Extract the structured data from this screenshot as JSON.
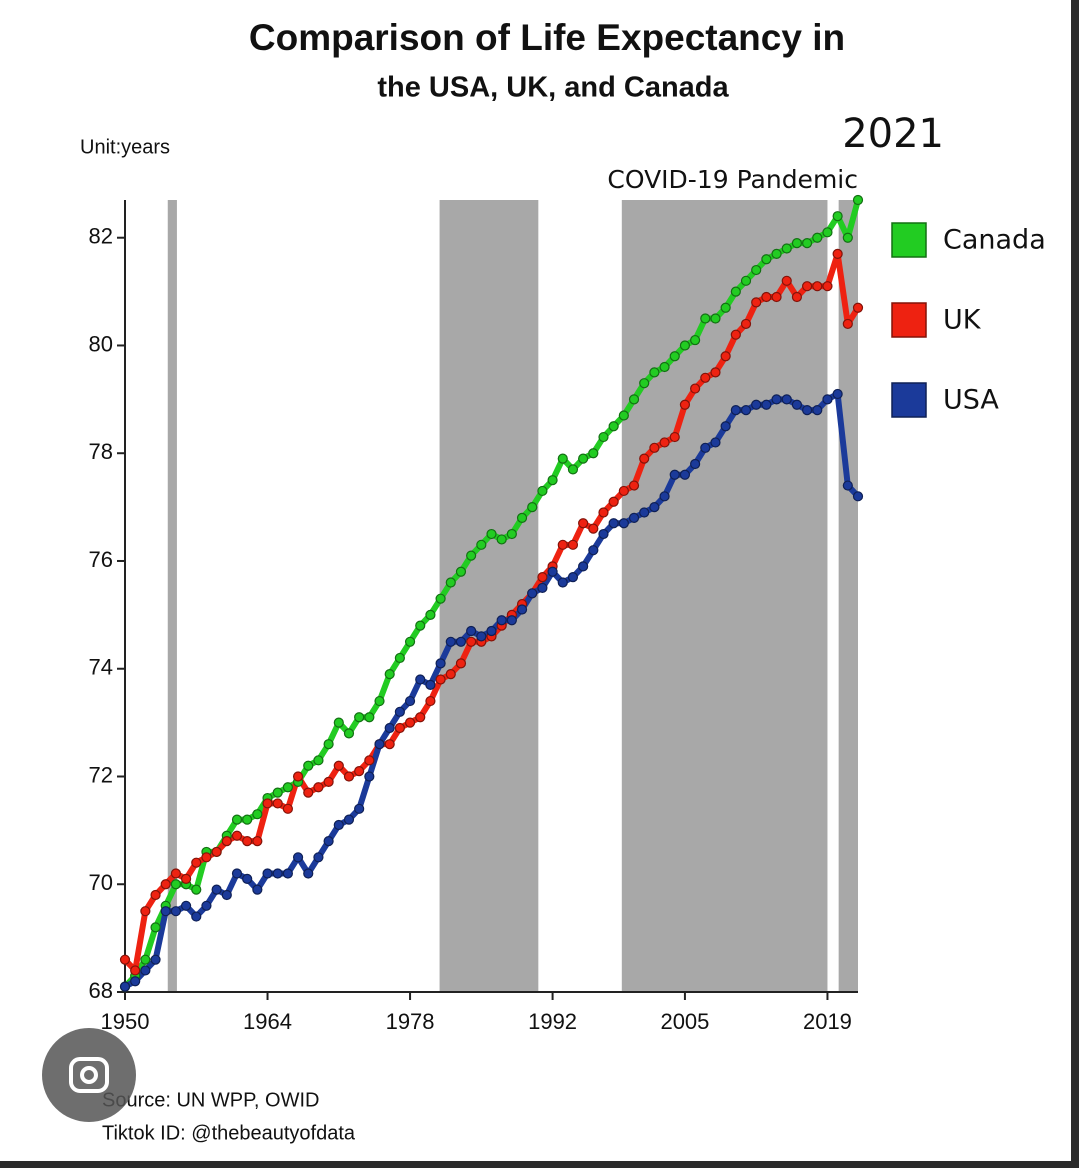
{
  "chart_data": {
    "type": "line",
    "title": "Comparison of Life Expectancy in",
    "subtitle": "the USA, UK, and Canada",
    "unit_label": "Unit:years",
    "year_label": "2021",
    "annotation": "COVID-19 Pandemic",
    "source": "Source: UN WPP, OWID",
    "credit": "Tiktok ID: @thebeautyofdata",
    "x": [
      1950,
      1951,
      1952,
      1953,
      1954,
      1955,
      1956,
      1957,
      1958,
      1959,
      1960,
      1961,
      1962,
      1963,
      1964,
      1965,
      1966,
      1967,
      1968,
      1969,
      1970,
      1971,
      1972,
      1973,
      1974,
      1975,
      1976,
      1977,
      1978,
      1979,
      1980,
      1981,
      1982,
      1983,
      1984,
      1985,
      1986,
      1987,
      1988,
      1989,
      1990,
      1991,
      1992,
      1993,
      1994,
      1995,
      1996,
      1997,
      1998,
      1999,
      2000,
      2001,
      2002,
      2003,
      2004,
      2005,
      2006,
      2007,
      2008,
      2009,
      2010,
      2011,
      2012,
      2013,
      2014,
      2015,
      2016,
      2017,
      2018,
      2019,
      2020,
      2021,
      2022
    ],
    "series": [
      {
        "name": "Canada",
        "color": "#22cc22",
        "values": [
          68.1,
          68.3,
          68.6,
          69.2,
          69.6,
          70.0,
          70.0,
          69.9,
          70.6,
          70.6,
          70.9,
          71.2,
          71.2,
          71.3,
          71.6,
          71.7,
          71.8,
          71.9,
          72.2,
          72.3,
          72.6,
          73.0,
          72.8,
          73.1,
          73.1,
          73.4,
          73.9,
          74.2,
          74.5,
          74.8,
          75.0,
          75.3,
          75.6,
          75.8,
          76.1,
          76.3,
          76.5,
          76.4,
          76.5,
          76.8,
          77.0,
          77.3,
          77.5,
          77.9,
          77.7,
          77.9,
          78.0,
          78.3,
          78.5,
          78.7,
          79.0,
          79.3,
          79.5,
          79.6,
          79.8,
          80.0,
          80.1,
          80.5,
          80.5,
          80.7,
          81.0,
          81.2,
          81.4,
          81.6,
          81.7,
          81.8,
          81.9,
          81.9,
          82.0,
          82.1,
          82.4,
          82.0,
          82.7
        ]
      },
      {
        "name": "UK",
        "color": "#ee2211",
        "values": [
          68.6,
          68.4,
          69.5,
          69.8,
          70.0,
          70.2,
          70.1,
          70.4,
          70.5,
          70.6,
          70.8,
          70.9,
          70.8,
          70.8,
          71.5,
          71.5,
          71.4,
          72.0,
          71.7,
          71.8,
          71.9,
          72.2,
          72.0,
          72.1,
          72.3,
          72.6,
          72.6,
          72.9,
          73.0,
          73.1,
          73.4,
          73.8,
          73.9,
          74.1,
          74.5,
          74.5,
          74.6,
          74.8,
          75.0,
          75.2,
          75.4,
          75.7,
          75.9,
          76.3,
          76.3,
          76.7,
          76.6,
          76.9,
          77.1,
          77.3,
          77.4,
          77.9,
          78.1,
          78.2,
          78.3,
          78.9,
          79.2,
          79.4,
          79.5,
          79.8,
          80.2,
          80.4,
          80.8,
          80.9,
          80.9,
          81.2,
          80.9,
          81.1,
          81.1,
          81.1,
          81.7,
          80.4,
          80.7
        ]
      },
      {
        "name": "USA",
        "color": "#1b3a9a",
        "values": [
          68.1,
          68.2,
          68.4,
          68.6,
          69.5,
          69.5,
          69.6,
          69.4,
          69.6,
          69.9,
          69.8,
          70.2,
          70.1,
          69.9,
          70.2,
          70.2,
          70.2,
          70.5,
          70.2,
          70.5,
          70.8,
          71.1,
          71.2,
          71.4,
          72.0,
          72.6,
          72.9,
          73.2,
          73.4,
          73.8,
          73.7,
          74.1,
          74.5,
          74.5,
          74.7,
          74.6,
          74.7,
          74.9,
          74.9,
          75.1,
          75.4,
          75.5,
          75.8,
          75.6,
          75.7,
          75.9,
          76.2,
          76.5,
          76.7,
          76.7,
          76.8,
          76.9,
          77.0,
          77.2,
          77.6,
          77.6,
          77.8,
          78.1,
          78.2,
          78.5,
          78.8,
          78.8,
          78.9,
          78.9,
          79.0,
          79.0,
          78.9,
          78.8,
          78.8,
          79.0,
          79.1,
          77.4,
          77.2
        ]
      }
    ],
    "shaded_ranges": [
      [
        1954.2,
        1955.1
      ],
      [
        1980.9,
        1990.6
      ],
      [
        1998.8,
        2019.0
      ],
      [
        2020.1,
        2022.0
      ]
    ],
    "shade_color": "#a8a8a8",
    "xlim": [
      1950,
      2022
    ],
    "xticks": [
      1950,
      1964,
      1978,
      1992,
      2005,
      2019
    ],
    "ylim": [
      68,
      82.7
    ],
    "yticks": [
      68,
      70,
      72,
      74,
      76,
      78,
      80,
      82
    ],
    "legend": "right"
  }
}
